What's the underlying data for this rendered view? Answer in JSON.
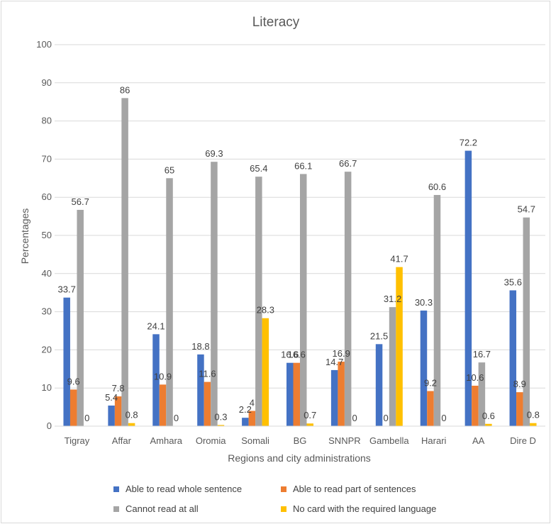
{
  "chart_data": {
    "type": "bar",
    "title": "Literacy",
    "xlabel": "Regions and city administrations",
    "ylabel": "Percentages",
    "ylim": [
      0,
      100
    ],
    "yticks": [
      0,
      10,
      20,
      30,
      40,
      50,
      60,
      70,
      80,
      90,
      100
    ],
    "grid": true,
    "legend_position": "bottom",
    "categories": [
      "Tigray",
      "Affar",
      "Amhara",
      "Oromia",
      "Somali",
      "BG",
      "SNNPR",
      "Gambella",
      "Harari",
      "AA",
      "Dire D"
    ],
    "series": [
      {
        "name": "Able to read whole sentence",
        "color": "#4472c4",
        "values": [
          33.7,
          5.4,
          24.1,
          18.8,
          2.2,
          16.6,
          14.7,
          21.5,
          30.3,
          72.2,
          35.6
        ]
      },
      {
        "name": "Able to read part of sentences",
        "color": "#ed7d31",
        "values": [
          9.6,
          7.8,
          10.9,
          11.6,
          4,
          16.6,
          16.9,
          0,
          9.2,
          10.6,
          8.9
        ]
      },
      {
        "name": "Cannot read at all",
        "color": "#a5a5a5",
        "values": [
          56.7,
          86,
          65,
          69.3,
          65.4,
          66.1,
          66.7,
          31.2,
          60.6,
          16.7,
          54.7
        ]
      },
      {
        "name": "No card with the required language",
        "color": "#ffc000",
        "values": [
          0,
          0.8,
          0,
          0.3,
          28.3,
          0.7,
          0,
          41.7,
          0,
          0.6,
          0.8
        ]
      }
    ]
  }
}
